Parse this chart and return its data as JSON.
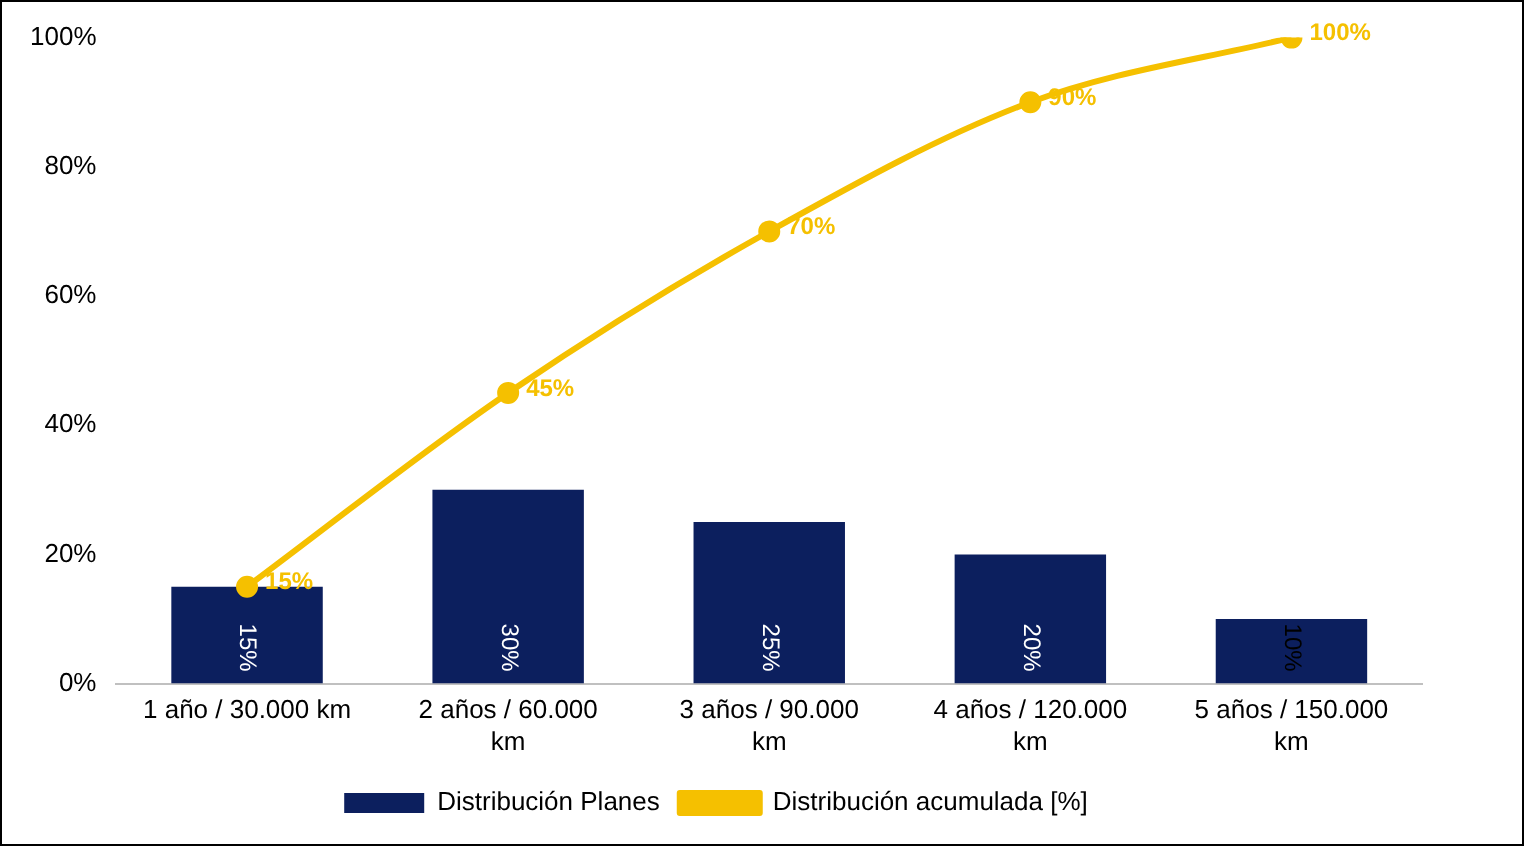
{
  "chart_data": {
    "type": "bar",
    "categories": [
      "1 año / 30.000 km",
      "2 años / 60.000 km",
      "3 años / 90.000 km",
      "4 años / 120.000 km",
      "5 años / 150.000 km"
    ],
    "series": [
      {
        "name": "Distribución Planes",
        "color": "#0c1f5e",
        "values": [
          15,
          30,
          25,
          20,
          10
        ],
        "value_labels": [
          "15%",
          "30%",
          "25%",
          "20%",
          "10%"
        ]
      },
      {
        "name": "Distribución acumulada [%]",
        "type": "line",
        "color": "#f5c000",
        "values": [
          15,
          45,
          70,
          90,
          100
        ],
        "value_labels": [
          "15%",
          "45%",
          "70%",
          "90%",
          "100%"
        ]
      }
    ],
    "ylim": [
      0,
      100
    ],
    "yticks": [
      {
        "value": 0,
        "label": "0%"
      },
      {
        "value": 20,
        "label": "20%"
      },
      {
        "value": 40,
        "label": "40%"
      },
      {
        "value": 60,
        "label": "60%"
      },
      {
        "value": 80,
        "label": "80%"
      },
      {
        "value": 100,
        "label": "100%"
      }
    ],
    "grid": false,
    "legend": "bottom",
    "marker": "circle",
    "line_style": "solid"
  }
}
